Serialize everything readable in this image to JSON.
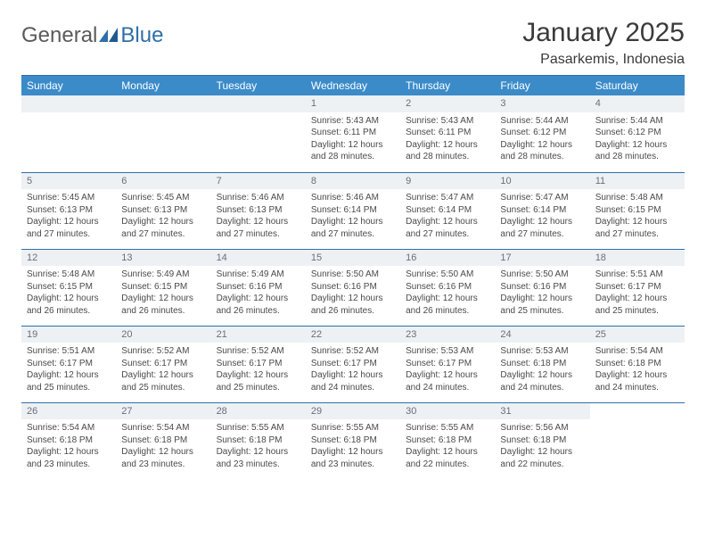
{
  "brand": {
    "part1": "General",
    "part2": "Blue"
  },
  "title": "January 2025",
  "location": "Pasarkemis, Indonesia",
  "colors": {
    "header_bg": "#3b8bc9",
    "header_text": "#ffffff",
    "rule": "#2f6fa8",
    "daynum_bg": "#eef1f4",
    "daynum_text": "#6a6f75",
    "body_text": "#4a4a4a",
    "page_bg": "#ffffff"
  },
  "weekdays": [
    "Sunday",
    "Monday",
    "Tuesday",
    "Wednesday",
    "Thursday",
    "Friday",
    "Saturday"
  ],
  "start_weekday_index": 3,
  "days": [
    {
      "n": 1,
      "sunrise": "5:43 AM",
      "sunset": "6:11 PM",
      "daylight": "12 hours and 28 minutes."
    },
    {
      "n": 2,
      "sunrise": "5:43 AM",
      "sunset": "6:11 PM",
      "daylight": "12 hours and 28 minutes."
    },
    {
      "n": 3,
      "sunrise": "5:44 AM",
      "sunset": "6:12 PM",
      "daylight": "12 hours and 28 minutes."
    },
    {
      "n": 4,
      "sunrise": "5:44 AM",
      "sunset": "6:12 PM",
      "daylight": "12 hours and 28 minutes."
    },
    {
      "n": 5,
      "sunrise": "5:45 AM",
      "sunset": "6:13 PM",
      "daylight": "12 hours and 27 minutes."
    },
    {
      "n": 6,
      "sunrise": "5:45 AM",
      "sunset": "6:13 PM",
      "daylight": "12 hours and 27 minutes."
    },
    {
      "n": 7,
      "sunrise": "5:46 AM",
      "sunset": "6:13 PM",
      "daylight": "12 hours and 27 minutes."
    },
    {
      "n": 8,
      "sunrise": "5:46 AM",
      "sunset": "6:14 PM",
      "daylight": "12 hours and 27 minutes."
    },
    {
      "n": 9,
      "sunrise": "5:47 AM",
      "sunset": "6:14 PM",
      "daylight": "12 hours and 27 minutes."
    },
    {
      "n": 10,
      "sunrise": "5:47 AM",
      "sunset": "6:14 PM",
      "daylight": "12 hours and 27 minutes."
    },
    {
      "n": 11,
      "sunrise": "5:48 AM",
      "sunset": "6:15 PM",
      "daylight": "12 hours and 27 minutes."
    },
    {
      "n": 12,
      "sunrise": "5:48 AM",
      "sunset": "6:15 PM",
      "daylight": "12 hours and 26 minutes."
    },
    {
      "n": 13,
      "sunrise": "5:49 AM",
      "sunset": "6:15 PM",
      "daylight": "12 hours and 26 minutes."
    },
    {
      "n": 14,
      "sunrise": "5:49 AM",
      "sunset": "6:16 PM",
      "daylight": "12 hours and 26 minutes."
    },
    {
      "n": 15,
      "sunrise": "5:50 AM",
      "sunset": "6:16 PM",
      "daylight": "12 hours and 26 minutes."
    },
    {
      "n": 16,
      "sunrise": "5:50 AM",
      "sunset": "6:16 PM",
      "daylight": "12 hours and 26 minutes."
    },
    {
      "n": 17,
      "sunrise": "5:50 AM",
      "sunset": "6:16 PM",
      "daylight": "12 hours and 25 minutes."
    },
    {
      "n": 18,
      "sunrise": "5:51 AM",
      "sunset": "6:17 PM",
      "daylight": "12 hours and 25 minutes."
    },
    {
      "n": 19,
      "sunrise": "5:51 AM",
      "sunset": "6:17 PM",
      "daylight": "12 hours and 25 minutes."
    },
    {
      "n": 20,
      "sunrise": "5:52 AM",
      "sunset": "6:17 PM",
      "daylight": "12 hours and 25 minutes."
    },
    {
      "n": 21,
      "sunrise": "5:52 AM",
      "sunset": "6:17 PM",
      "daylight": "12 hours and 25 minutes."
    },
    {
      "n": 22,
      "sunrise": "5:52 AM",
      "sunset": "6:17 PM",
      "daylight": "12 hours and 24 minutes."
    },
    {
      "n": 23,
      "sunrise": "5:53 AM",
      "sunset": "6:17 PM",
      "daylight": "12 hours and 24 minutes."
    },
    {
      "n": 24,
      "sunrise": "5:53 AM",
      "sunset": "6:18 PM",
      "daylight": "12 hours and 24 minutes."
    },
    {
      "n": 25,
      "sunrise": "5:54 AM",
      "sunset": "6:18 PM",
      "daylight": "12 hours and 24 minutes."
    },
    {
      "n": 26,
      "sunrise": "5:54 AM",
      "sunset": "6:18 PM",
      "daylight": "12 hours and 23 minutes."
    },
    {
      "n": 27,
      "sunrise": "5:54 AM",
      "sunset": "6:18 PM",
      "daylight": "12 hours and 23 minutes."
    },
    {
      "n": 28,
      "sunrise": "5:55 AM",
      "sunset": "6:18 PM",
      "daylight": "12 hours and 23 minutes."
    },
    {
      "n": 29,
      "sunrise": "5:55 AM",
      "sunset": "6:18 PM",
      "daylight": "12 hours and 23 minutes."
    },
    {
      "n": 30,
      "sunrise": "5:55 AM",
      "sunset": "6:18 PM",
      "daylight": "12 hours and 22 minutes."
    },
    {
      "n": 31,
      "sunrise": "5:56 AM",
      "sunset": "6:18 PM",
      "daylight": "12 hours and 22 minutes."
    }
  ],
  "labels": {
    "sunrise": "Sunrise:",
    "sunset": "Sunset:",
    "daylight": "Daylight:"
  }
}
